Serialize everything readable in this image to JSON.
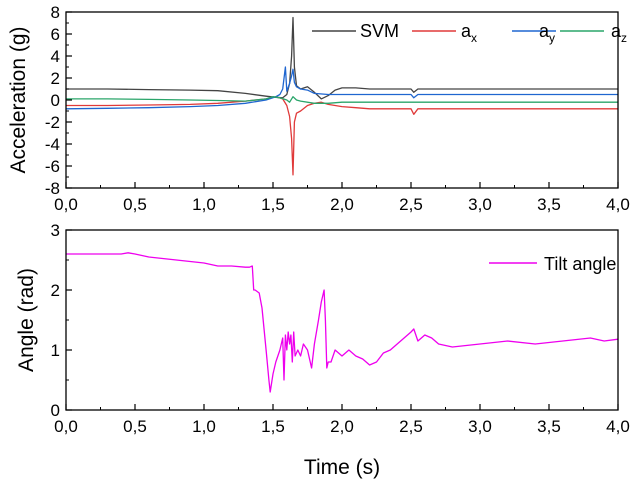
{
  "chart_data": [
    {
      "type": "line",
      "ylabel": "Acceleration (g)",
      "xlim": [
        0,
        4
      ],
      "ylim": [
        -8,
        8
      ],
      "x_ticks": [
        "0,0",
        "0,5",
        "1,0",
        "1,5",
        "2,0",
        "2,5",
        "3,0",
        "3,5",
        "4,0"
      ],
      "y_ticks": [
        "-8",
        "-6",
        "-4",
        "-2",
        "0",
        "2",
        "4",
        "6",
        "8"
      ],
      "legend_position": "top-right",
      "grid": false,
      "series": [
        {
          "name": "SVM",
          "label_main": "SVM",
          "label_sub": "",
          "color": "#444444",
          "x": [
            0,
            0.3,
            0.6,
            0.9,
            1.1,
            1.3,
            1.45,
            1.52,
            1.57,
            1.6,
            1.62,
            1.635,
            1.645,
            1.655,
            1.67,
            1.7,
            1.75,
            1.8,
            1.85,
            1.9,
            1.95,
            2.0,
            2.1,
            2.2,
            2.3,
            2.4,
            2.5,
            2.52,
            2.55,
            2.6,
            2.7,
            2.9,
            3.1,
            3.3,
            3.5,
            3.7,
            4.0
          ],
          "y": [
            1.0,
            1.0,
            0.95,
            0.9,
            0.85,
            0.6,
            0.35,
            0.25,
            0.2,
            0.5,
            1.5,
            4.0,
            7.5,
            3.0,
            1.3,
            1.0,
            1.2,
            0.7,
            0.1,
            0.4,
            0.9,
            1.1,
            1.1,
            1.0,
            1.0,
            1.0,
            1.0,
            0.7,
            1.0,
            1.0,
            1.0,
            1.0,
            1.0,
            1.0,
            1.0,
            1.0,
            1.0
          ]
        },
        {
          "name": "a_x",
          "label_main": "a",
          "label_sub": "x",
          "color": "#e03a3a",
          "x": [
            0,
            0.3,
            0.6,
            0.9,
            1.1,
            1.3,
            1.45,
            1.52,
            1.57,
            1.6,
            1.62,
            1.635,
            1.645,
            1.655,
            1.67,
            1.7,
            1.75,
            1.8,
            1.85,
            1.9,
            2.0,
            2.1,
            2.2,
            2.3,
            2.4,
            2.5,
            2.52,
            2.55,
            2.6,
            2.8,
            3.0,
            3.2,
            3.5,
            3.8,
            4.0
          ],
          "y": [
            -0.5,
            -0.5,
            -0.45,
            -0.4,
            -0.3,
            -0.1,
            0.1,
            0.3,
            0.1,
            -0.5,
            -1.5,
            -3.5,
            -6.8,
            -2.0,
            -1.2,
            -1.0,
            -0.5,
            -0.3,
            -0.2,
            -0.4,
            -0.6,
            -0.7,
            -0.8,
            -0.8,
            -0.8,
            -0.8,
            -1.3,
            -0.8,
            -0.8,
            -0.8,
            -0.8,
            -0.8,
            -0.8,
            -0.8,
            -0.8
          ]
        },
        {
          "name": "a_y",
          "label_main": "a",
          "label_sub": "y",
          "color": "#1f66d0",
          "x": [
            0,
            0.3,
            0.6,
            0.9,
            1.1,
            1.3,
            1.45,
            1.52,
            1.55,
            1.57,
            1.59,
            1.6,
            1.62,
            1.635,
            1.645,
            1.655,
            1.67,
            1.7,
            1.75,
            1.8,
            1.9,
            2.0,
            2.2,
            2.5,
            2.52,
            2.55,
            3.0,
            3.5,
            4.0
          ],
          "y": [
            -0.8,
            -0.75,
            -0.7,
            -0.6,
            -0.5,
            -0.3,
            0.0,
            0.3,
            0.5,
            1.0,
            3.0,
            0.8,
            1.5,
            2.2,
            2.8,
            1.6,
            1.2,
            1.0,
            0.9,
            0.6,
            0.5,
            0.5,
            0.5,
            0.5,
            0.2,
            0.5,
            0.5,
            0.5,
            0.5
          ]
        },
        {
          "name": "a_z",
          "label_main": "a",
          "label_sub": "z",
          "color": "#2aa56a",
          "x": [
            0,
            0.3,
            0.6,
            0.9,
            1.1,
            1.3,
            1.45,
            1.5,
            1.55,
            1.6,
            1.62,
            1.645,
            1.67,
            1.7,
            1.8,
            1.9,
            2.0,
            2.2,
            2.5,
            3.0,
            3.5,
            4.0
          ],
          "y": [
            0.1,
            0.1,
            0.05,
            0.0,
            -0.05,
            -0.1,
            0.1,
            0.3,
            0.2,
            0.0,
            -0.2,
            0.3,
            0.0,
            -0.1,
            -0.3,
            -0.3,
            -0.2,
            -0.2,
            -0.2,
            -0.2,
            -0.2,
            -0.2
          ]
        }
      ]
    },
    {
      "type": "line",
      "xlabel": "Time (s)",
      "ylabel": "Angle (rad)",
      "xlim": [
        0,
        4
      ],
      "ylim": [
        0,
        3
      ],
      "x_ticks": [
        "0,0",
        "0,5",
        "1,0",
        "1,5",
        "2,0",
        "2,5",
        "3,0",
        "3,5",
        "4,0"
      ],
      "y_ticks": [
        "0",
        "1",
        "2",
        "3"
      ],
      "legend_position": "top-right",
      "grid": false,
      "series": [
        {
          "name": "Tilt angle",
          "color": "#ee00ee",
          "x": [
            0,
            0.2,
            0.4,
            0.45,
            0.5,
            0.6,
            0.8,
            1.0,
            1.1,
            1.2,
            1.3,
            1.33,
            1.35,
            1.36,
            1.37,
            1.4,
            1.42,
            1.45,
            1.47,
            1.48,
            1.5,
            1.52,
            1.55,
            1.57,
            1.58,
            1.59,
            1.6,
            1.61,
            1.62,
            1.63,
            1.64,
            1.65,
            1.66,
            1.68,
            1.7,
            1.72,
            1.75,
            1.78,
            1.8,
            1.83,
            1.85,
            1.87,
            1.88,
            1.89,
            1.9,
            1.92,
            1.95,
            2.0,
            2.05,
            2.1,
            2.15,
            2.2,
            2.25,
            2.3,
            2.35,
            2.4,
            2.45,
            2.5,
            2.52,
            2.55,
            2.6,
            2.65,
            2.7,
            2.8,
            3.0,
            3.2,
            3.4,
            3.6,
            3.8,
            3.9,
            4.0
          ],
          "y": [
            2.6,
            2.6,
            2.6,
            2.62,
            2.6,
            2.55,
            2.5,
            2.45,
            2.4,
            2.4,
            2.38,
            2.38,
            2.4,
            2.0,
            2.0,
            1.95,
            1.7,
            1.0,
            0.5,
            0.3,
            0.6,
            0.8,
            1.0,
            1.2,
            0.5,
            1.25,
            1.0,
            1.3,
            1.1,
            1.25,
            0.8,
            1.3,
            0.9,
            1.0,
            0.9,
            1.1,
            1.0,
            0.7,
            1.1,
            1.5,
            1.8,
            2.0,
            1.5,
            0.7,
            0.8,
            0.8,
            1.0,
            0.9,
            1.0,
            0.9,
            0.85,
            0.75,
            0.8,
            0.95,
            1.0,
            1.1,
            1.2,
            1.3,
            1.35,
            1.15,
            1.25,
            1.2,
            1.1,
            1.05,
            1.1,
            1.15,
            1.1,
            1.15,
            1.2,
            1.15,
            1.18
          ]
        }
      ]
    }
  ]
}
